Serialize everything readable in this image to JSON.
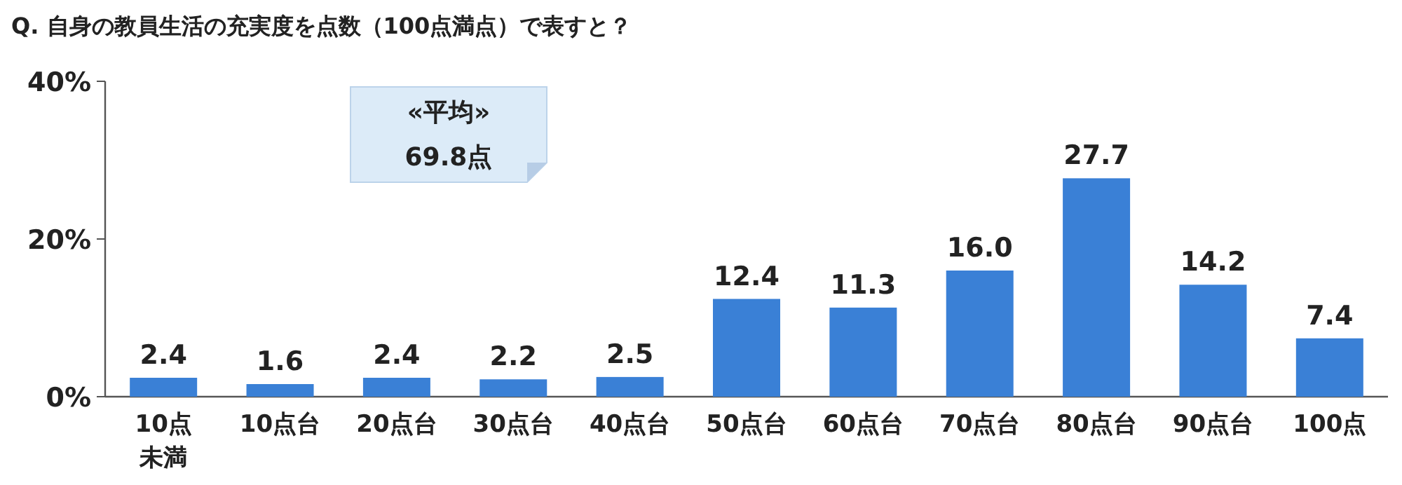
{
  "chart_data": {
    "type": "bar",
    "title": "Q.  自身の教員生活の充実度を点数（100点満点）で表すと？",
    "categories": [
      "10点未満",
      "10点台",
      "20点台",
      "30点台",
      "40点台",
      "50点台",
      "60点台",
      "70点台",
      "80点台",
      "90点台",
      "100点"
    ],
    "values": [
      2.4,
      1.6,
      2.4,
      2.2,
      2.5,
      12.4,
      11.3,
      16.0,
      27.7,
      14.2,
      7.4
    ],
    "color": "#3a80d6",
    "ylim": [
      0,
      40
    ],
    "yticks": [
      {
        "value": 0,
        "label": "0%"
      },
      {
        "value": 20,
        "label": "20%"
      },
      {
        "value": 40,
        "label": "40%"
      }
    ],
    "value_labels": [
      "2.4",
      "1.6",
      "2.4",
      "2.2",
      "2.5",
      "12.4",
      "11.3",
      "16.0",
      "27.7",
      "14.2",
      "7.4"
    ],
    "annotations": [
      "«平均»",
      "69.8点"
    ]
  }
}
